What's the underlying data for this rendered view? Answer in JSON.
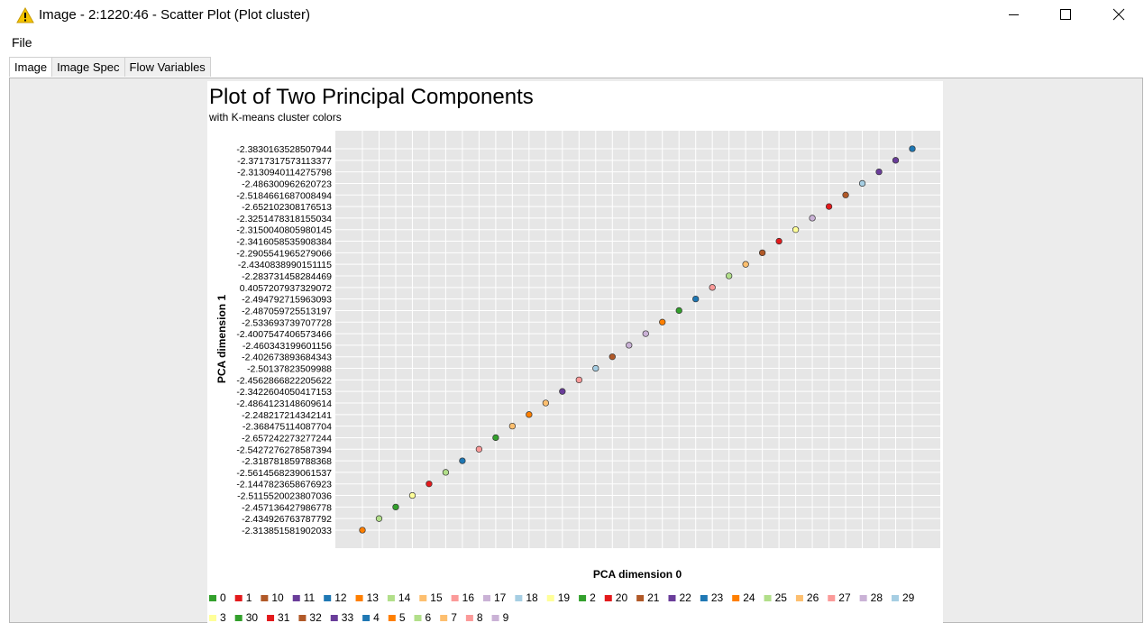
{
  "window": {
    "title": "Image - 2:1220:46 - Scatter Plot (Plot cluster)",
    "menu": [
      "File"
    ],
    "tabs": [
      "Image",
      "Image Spec",
      "Flow Variables"
    ]
  },
  "chart_data": {
    "type": "scatter",
    "title": "Plot of Two Principal Components",
    "subtitle": "with K-means cluster colors",
    "x_label": "PCA dimension 0",
    "y_label": "PCA dimension 1",
    "grid": true,
    "y_categories": [
      "-2.313851581902033",
      "-2.434926763787792",
      "-2.457136427986778",
      "-2.5115520023807036",
      "-2.1447823658676923",
      "-2.5614568239061537",
      "-2.318781859788368",
      "-2.5427276278587394",
      "-2.657242273277244",
      "-2.368475114087704",
      "-2.248217214342141",
      "-2.4864123148609614",
      "-2.3422604050417153",
      "-2.4562866822205622",
      "-2.50137823509988",
      "-2.402673893684343",
      "-2.460343199601156",
      "-2.4007547406573466",
      "-2.533693739707728",
      "-2.487059725513197",
      "-2.494792715963093",
      "0.4057207937329072",
      "-2.283731458284469",
      "-2.4340838990151115",
      "-2.2905541965279066",
      "-2.3416058535908384",
      "-2.3150040805980145",
      "-2.3251478318155034",
      "-2.652102308176513",
      "-2.5184661687008494",
      "-2.486300962620723",
      "-2.3130940114275798",
      "-2.3717317573113377",
      "-2.3830163528507944"
    ],
    "point_colors": [
      "#ff7f00",
      "#b2df8a",
      "#33a02c",
      "#ffff99",
      "#e31a1c",
      "#b2df8a",
      "#1f78b4",
      "#fb9a99",
      "#33a02c",
      "#fdbf6f",
      "#ff7f00",
      "#fdbf6f",
      "#6a3d9a",
      "#fb9a99",
      "#a6cee3",
      "#b15928",
      "#cab2d6",
      "#cab2d6",
      "#ff7f00",
      "#33a02c",
      "#1f78b4",
      "#fb9a99",
      "#b2df8a",
      "#fdbf6f",
      "#b15928",
      "#e31a1c",
      "#ffff99",
      "#cab2d6",
      "#e31a1c",
      "#b15928",
      "#a6cee3",
      "#6a3d9a",
      "#6a3d9a",
      "#1f78b4"
    ],
    "legend": [
      {
        "name": "0",
        "color": "#33a02c"
      },
      {
        "name": "1",
        "color": "#e31a1c"
      },
      {
        "name": "10",
        "color": "#b15928"
      },
      {
        "name": "11",
        "color": "#6a3d9a"
      },
      {
        "name": "12",
        "color": "#1f78b4"
      },
      {
        "name": "13",
        "color": "#ff7f00"
      },
      {
        "name": "14",
        "color": "#b2df8a"
      },
      {
        "name": "15",
        "color": "#fdbf6f"
      },
      {
        "name": "16",
        "color": "#fb9a99"
      },
      {
        "name": "17",
        "color": "#cab2d6"
      },
      {
        "name": "18",
        "color": "#a6cee3"
      },
      {
        "name": "19",
        "color": "#ffff99"
      },
      {
        "name": "2",
        "color": "#33a02c"
      },
      {
        "name": "20",
        "color": "#e31a1c"
      },
      {
        "name": "21",
        "color": "#b15928"
      },
      {
        "name": "22",
        "color": "#6a3d9a"
      },
      {
        "name": "23",
        "color": "#1f78b4"
      },
      {
        "name": "24",
        "color": "#ff7f00"
      },
      {
        "name": "25",
        "color": "#b2df8a"
      },
      {
        "name": "26",
        "color": "#fdbf6f"
      },
      {
        "name": "27",
        "color": "#fb9a99"
      },
      {
        "name": "28",
        "color": "#cab2d6"
      },
      {
        "name": "29",
        "color": "#a6cee3"
      },
      {
        "name": "3",
        "color": "#ffff99"
      },
      {
        "name": "30",
        "color": "#33a02c"
      },
      {
        "name": "31",
        "color": "#e31a1c"
      },
      {
        "name": "32",
        "color": "#b15928"
      },
      {
        "name": "33",
        "color": "#6a3d9a"
      },
      {
        "name": "4",
        "color": "#1f78b4"
      },
      {
        "name": "5",
        "color": "#ff7f00"
      },
      {
        "name": "6",
        "color": "#b2df8a"
      },
      {
        "name": "7",
        "color": "#fdbf6f"
      },
      {
        "name": "8",
        "color": "#fb9a99"
      },
      {
        "name": "9",
        "color": "#cab2d6"
      }
    ]
  }
}
